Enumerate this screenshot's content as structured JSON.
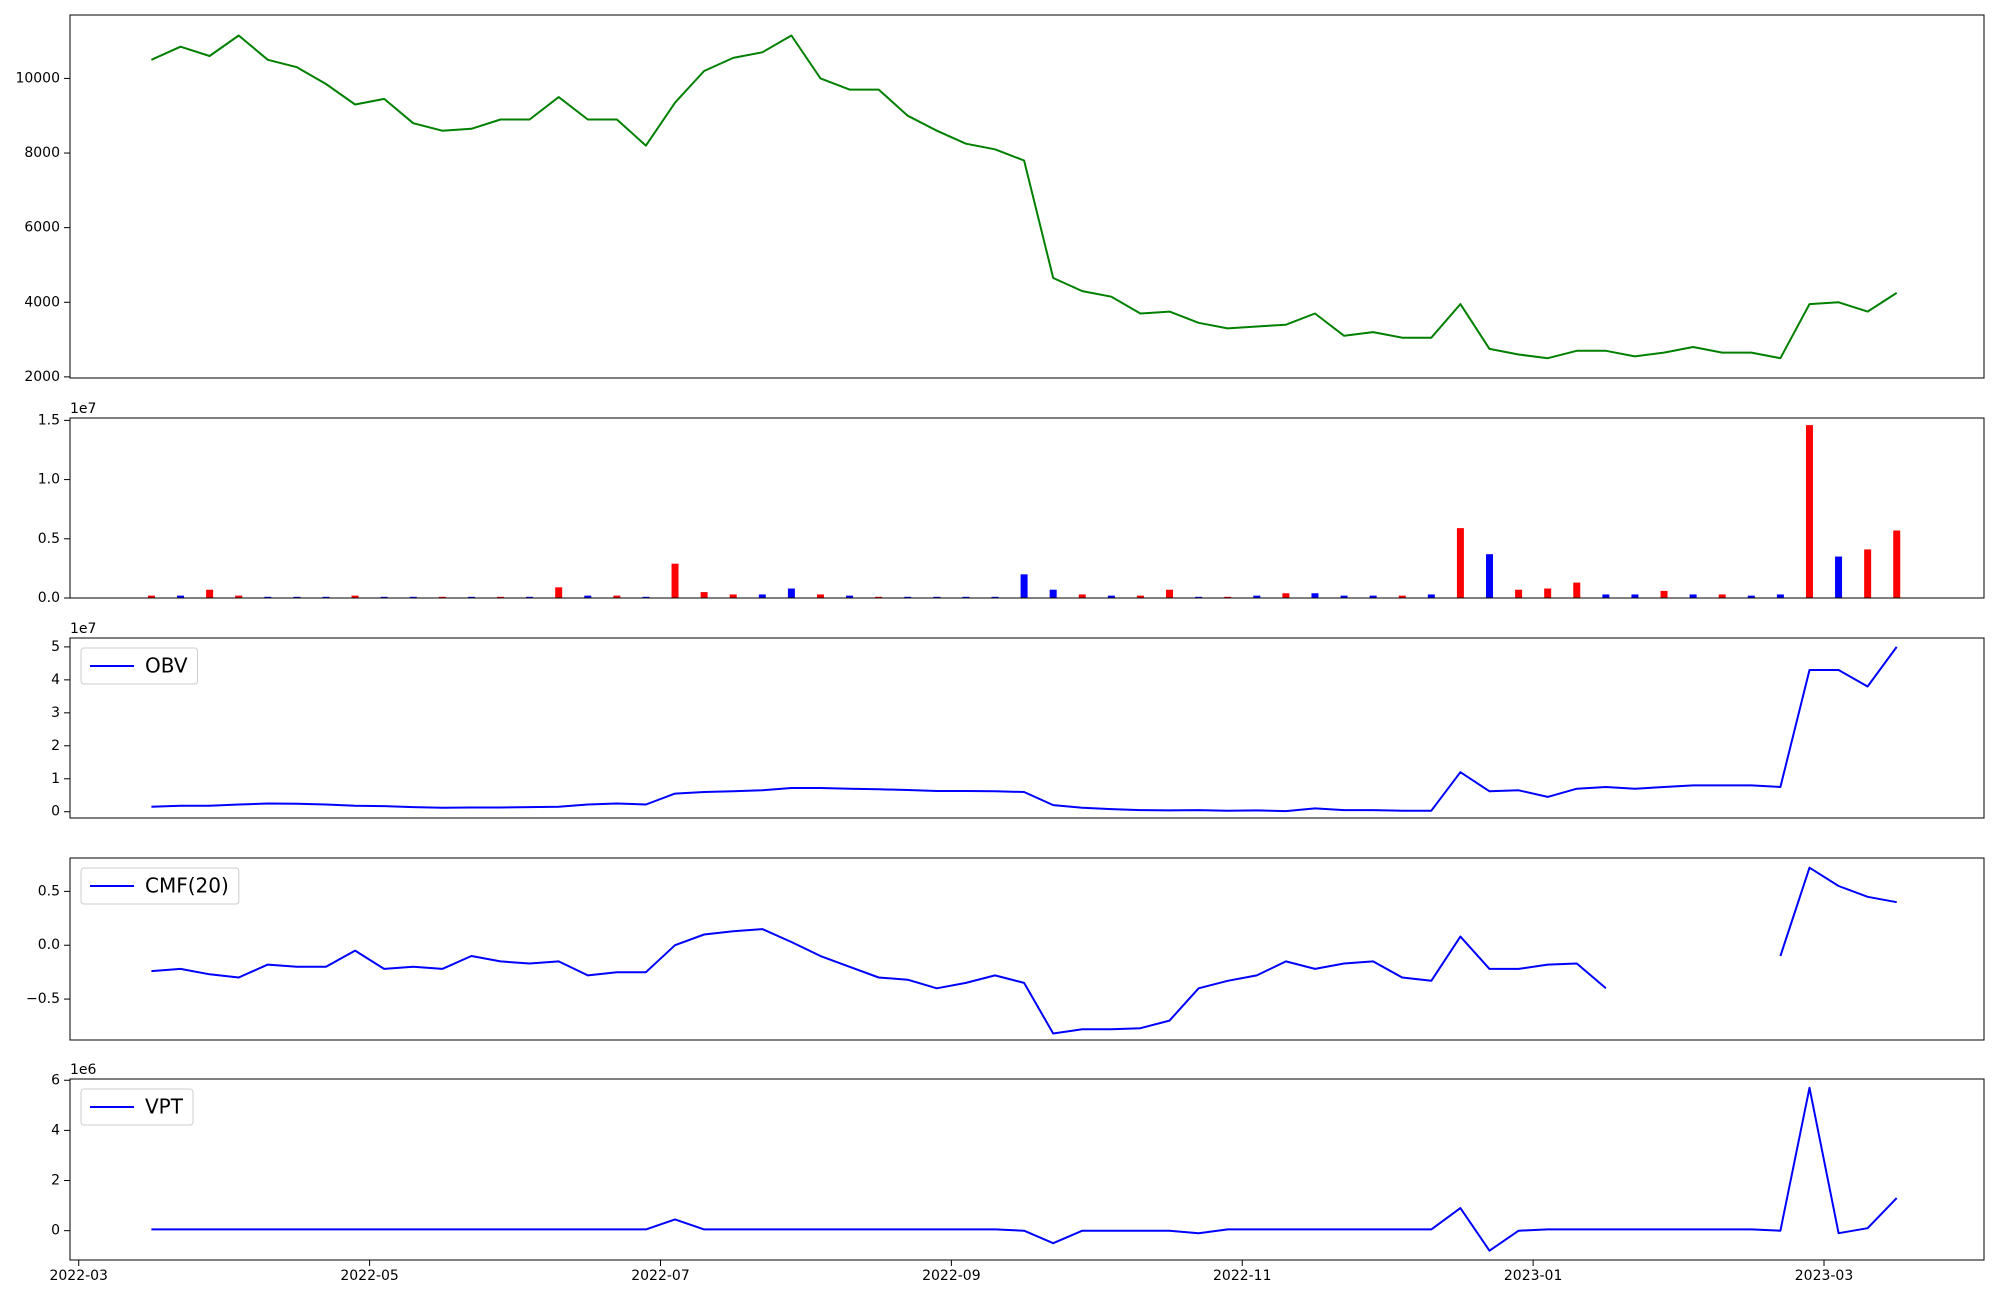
{
  "chart_data": [
    {
      "type": "line",
      "x": [
        0.5,
        0.7,
        0.9,
        1.1,
        1.3,
        1.5,
        1.7,
        1.9,
        2.1,
        2.3,
        2.5,
        2.7,
        2.9,
        3.1,
        3.3,
        3.5,
        3.7,
        3.9,
        4.1,
        4.3,
        4.5,
        4.7,
        4.9,
        5.1,
        5.3,
        5.5,
        5.7,
        5.9,
        6.1,
        6.3,
        6.5,
        6.7,
        6.9,
        7.1,
        7.3,
        7.5,
        7.7,
        7.9,
        8.1,
        8.3,
        8.5,
        8.7,
        8.9,
        9.1,
        9.3,
        9.5,
        9.7,
        9.9,
        10.1,
        10.3,
        10.5,
        10.7,
        10.9,
        11.1,
        11.3,
        11.5,
        11.7,
        11.9,
        12.1,
        12.3,
        12.5
      ],
      "series": [
        {
          "color": "#008000",
          "values": [
            10500,
            10850,
            10600,
            11150,
            10500,
            10300,
            9850,
            9300,
            9450,
            8800,
            8600,
            8650,
            8900,
            8900,
            9500,
            8900,
            8900,
            8200,
            9350,
            10200,
            10550,
            10700,
            11150,
            10000,
            9700,
            9700,
            9000,
            8600,
            8250,
            8100,
            7800,
            4650,
            4300,
            4150,
            3700,
            3750,
            3450,
            3300,
            3350,
            3400,
            3700,
            3100,
            3200,
            3050,
            3050,
            3950,
            2750,
            2600,
            2500,
            2700,
            2700,
            2550,
            2650,
            2800,
            2650,
            2650,
            2500,
            3950,
            4000,
            3750,
            4250
          ]
        }
      ],
      "xlim": [
        -0.06,
        13.1
      ],
      "ylim": [
        1970,
        11700
      ],
      "yticks": [
        2000,
        4000,
        6000,
        8000,
        10000
      ]
    },
    {
      "type": "bar",
      "x": [
        0.5,
        0.7,
        0.9,
        1.1,
        1.3,
        1.5,
        1.7,
        1.9,
        2.1,
        2.3,
        2.5,
        2.7,
        2.9,
        3.1,
        3.3,
        3.5,
        3.7,
        3.9,
        4.1,
        4.3,
        4.5,
        4.7,
        4.9,
        5.1,
        5.3,
        5.5,
        5.7,
        5.9,
        6.1,
        6.3,
        6.5,
        6.7,
        6.9,
        7.1,
        7.3,
        7.5,
        7.7,
        7.9,
        8.1,
        8.3,
        8.5,
        8.7,
        8.9,
        9.1,
        9.3,
        9.5,
        9.7,
        9.9,
        10.1,
        10.3,
        10.5,
        10.7,
        10.9,
        11.1,
        11.3,
        11.5,
        11.7,
        11.9,
        12.1,
        12.3,
        12.5
      ],
      "values": [
        200000,
        200000,
        700000,
        200000,
        100000,
        100000,
        100000,
        200000,
        100000,
        100000,
        100000,
        100000,
        100000,
        100000,
        900000,
        200000,
        200000,
        100000,
        2900000,
        500000,
        300000,
        300000,
        800000,
        300000,
        200000,
        100000,
        100000,
        100000,
        100000,
        100000,
        2000000,
        700000,
        300000,
        200000,
        200000,
        700000,
        100000,
        100000,
        200000,
        400000,
        400000,
        200000,
        200000,
        200000,
        300000,
        5900000,
        3700000,
        700000,
        800000,
        1300000,
        300000,
        300000,
        600000,
        300000,
        300000,
        200000,
        300000,
        14600000,
        3500000,
        4100000,
        5700000
      ],
      "colors": [
        "red",
        "blue",
        "red",
        "red",
        "blue",
        "blue",
        "blue",
        "red",
        "blue",
        "blue",
        "red",
        "blue",
        "red",
        "blue",
        "red",
        "blue",
        "red",
        "blue",
        "red",
        "red",
        "red",
        "blue",
        "blue",
        "red",
        "blue",
        "red",
        "blue",
        "blue",
        "blue",
        "blue",
        "blue",
        "blue",
        "red",
        "blue",
        "red",
        "red",
        "blue",
        "red",
        "blue",
        "red",
        "blue",
        "blue",
        "blue",
        "red",
        "blue",
        "red",
        "blue",
        "red",
        "red",
        "red",
        "blue",
        "blue",
        "red",
        "blue",
        "red",
        "blue",
        "blue",
        "red",
        "blue",
        "red",
        "red"
      ],
      "offset_text": "1e7",
      "xlim": [
        -0.06,
        13.1
      ],
      "ylim": [
        0,
        15200000
      ],
      "yticks": [
        {
          "value": 0,
          "label": "0.0"
        },
        {
          "value": 5000000,
          "label": "0.5"
        },
        {
          "value": 10000000,
          "label": "1.0"
        },
        {
          "value": 15000000,
          "label": "1.5"
        }
      ]
    },
    {
      "type": "line",
      "x": [
        0.5,
        0.7,
        0.9,
        1.1,
        1.3,
        1.5,
        1.7,
        1.9,
        2.1,
        2.3,
        2.5,
        2.7,
        2.9,
        3.1,
        3.3,
        3.5,
        3.7,
        3.9,
        4.1,
        4.3,
        4.5,
        4.7,
        4.9,
        5.1,
        5.3,
        5.5,
        5.7,
        5.9,
        6.1,
        6.3,
        6.5,
        6.7,
        6.9,
        7.1,
        7.3,
        7.5,
        7.7,
        7.9,
        8.1,
        8.3,
        8.5,
        8.7,
        8.9,
        9.1,
        9.3,
        9.5,
        9.7,
        9.9,
        10.1,
        10.3,
        10.5,
        10.7,
        10.9,
        11.1,
        11.3,
        11.5,
        11.7,
        11.9,
        12.1,
        12.3,
        12.5
      ],
      "series": [
        {
          "name": "OBV",
          "color": "#0000ff",
          "values": [
            1500000,
            1800000,
            1800000,
            2200000,
            2500000,
            2400000,
            2200000,
            1800000,
            1700000,
            1400000,
            1200000,
            1300000,
            1300000,
            1400000,
            1500000,
            2200000,
            2500000,
            2200000,
            5500000,
            6000000,
            6200000,
            6500000,
            7200000,
            7200000,
            7000000,
            6800000,
            6600000,
            6300000,
            6300000,
            6200000,
            6000000,
            2000000,
            1200000,
            800000,
            500000,
            400000,
            500000,
            300000,
            400000,
            200000,
            1000000,
            500000,
            500000,
            300000,
            300000,
            12000000,
            6200000,
            6500000,
            4500000,
            7000000,
            7500000,
            7000000,
            7500000,
            8000000,
            8000000,
            8000000,
            7500000,
            43000000,
            43000000,
            38000000,
            50000000
          ]
        }
      ],
      "offset_text": "1e7",
      "legend": "upper left",
      "xlim": [
        -0.06,
        13.1
      ],
      "ylim": [
        -1900000,
        52700000
      ],
      "yticks": [
        {
          "value": 0,
          "label": "0"
        },
        {
          "value": 10000000,
          "label": "1"
        },
        {
          "value": 20000000,
          "label": "2"
        },
        {
          "value": 30000000,
          "label": "3"
        },
        {
          "value": 40000000,
          "label": "4"
        },
        {
          "value": 50000000,
          "label": "5"
        }
      ]
    },
    {
      "type": "line",
      "x": [
        0.5,
        0.7,
        0.9,
        1.1,
        1.3,
        1.5,
        1.7,
        1.9,
        2.1,
        2.3,
        2.5,
        2.7,
        2.9,
        3.1,
        3.3,
        3.5,
        3.7,
        3.9,
        4.1,
        4.3,
        4.5,
        4.7,
        4.9,
        5.1,
        5.3,
        5.5,
        5.7,
        5.9,
        6.1,
        6.3,
        6.5,
        6.7,
        6.9,
        7.1,
        7.3,
        7.5,
        7.7,
        7.9,
        8.1,
        8.3,
        8.5,
        8.7,
        8.9,
        9.1,
        9.3,
        9.5,
        9.7,
        9.9,
        10.1,
        10.3,
        10.5,
        10.7,
        10.9,
        11.1,
        11.3,
        11.5,
        11.7,
        11.9,
        12.1,
        12.3,
        12.5
      ],
      "series": [
        {
          "name": "CMF(20)",
          "color": "#0000ff",
          "values": [
            -0.24,
            -0.22,
            -0.27,
            -0.3,
            -0.18,
            -0.2,
            -0.2,
            -0.05,
            -0.22,
            -0.2,
            -0.22,
            -0.1,
            -0.15,
            -0.17,
            -0.15,
            -0.28,
            -0.25,
            -0.25,
            0.0,
            0.1,
            0.13,
            0.15,
            0.03,
            -0.1,
            -0.2,
            -0.3,
            -0.32,
            -0.4,
            -0.35,
            -0.28,
            -0.35,
            -0.82,
            -0.78,
            -0.78,
            -0.77,
            -0.7,
            -0.4,
            -0.33,
            -0.28,
            -0.15,
            -0.22,
            -0.17,
            -0.15,
            -0.3,
            -0.33,
            0.08,
            -0.22,
            -0.22,
            -0.18,
            -0.17,
            -0.4,
            null,
            null,
            null,
            null,
            null,
            -0.1,
            0.72,
            0.55,
            0.45,
            0.4
          ]
        }
      ],
      "legend": "upper left",
      "xlim": [
        -0.06,
        13.1
      ],
      "ylim": [
        -0.88,
        0.81
      ],
      "yticks": [
        {
          "value": -0.5,
          "label": "−0.5"
        },
        {
          "value": 0,
          "label": "0.0"
        },
        {
          "value": 0.5,
          "label": "0.5"
        }
      ]
    },
    {
      "type": "line",
      "x": [
        0.5,
        0.7,
        0.9,
        1.1,
        1.3,
        1.5,
        1.7,
        1.9,
        2.1,
        2.3,
        2.5,
        2.7,
        2.9,
        3.1,
        3.3,
        3.5,
        3.7,
        3.9,
        4.1,
        4.3,
        4.5,
        4.7,
        4.9,
        5.1,
        5.3,
        5.5,
        5.7,
        5.9,
        6.1,
        6.3,
        6.5,
        6.7,
        6.9,
        7.1,
        7.3,
        7.5,
        7.7,
        7.9,
        8.1,
        8.3,
        8.5,
        8.7,
        8.9,
        9.1,
        9.3,
        9.5,
        9.7,
        9.9,
        10.1,
        10.3,
        10.5,
        10.7,
        10.9,
        11.1,
        11.3,
        11.5,
        11.7,
        11.9,
        12.1,
        12.3,
        12.5
      ],
      "series": [
        {
          "name": "VPT",
          "color": "#0000ff",
          "values": [
            50000,
            50000,
            50000,
            50000,
            50000,
            50000,
            50000,
            50000,
            50000,
            50000,
            50000,
            50000,
            50000,
            50000,
            50000,
            50000,
            50000,
            50000,
            450000,
            50000,
            50000,
            50000,
            50000,
            50000,
            50000,
            50000,
            50000,
            50000,
            50000,
            50000,
            0,
            -500000,
            0,
            0,
            0,
            0,
            -100000,
            50000,
            50000,
            50000,
            50000,
            50000,
            50000,
            50000,
            50000,
            900000,
            -800000,
            0,
            50000,
            50000,
            50000,
            50000,
            50000,
            50000,
            50000,
            50000,
            0,
            5700000,
            -100000,
            100000,
            1300000
          ]
        }
      ],
      "offset_text": "1e6",
      "legend": "upper left",
      "xlim": [
        -0.06,
        13.1
      ],
      "ylim": [
        -1170000,
        6050000
      ],
      "yticks": [
        {
          "value": 0,
          "label": "0"
        },
        {
          "value": 2000000,
          "label": "2"
        },
        {
          "value": 4000000,
          "label": "4"
        },
        {
          "value": 6000000,
          "label": "6"
        }
      ],
      "xticks": [
        {
          "value": 0,
          "label": "2022-03"
        },
        {
          "value": 2,
          "label": "2022-05"
        },
        {
          "value": 4,
          "label": "2022-07"
        },
        {
          "value": 6,
          "label": "2022-09"
        },
        {
          "value": 8,
          "label": "2022-11"
        },
        {
          "value": 10,
          "label": "2023-01"
        },
        {
          "value": 12,
          "label": "2023-03"
        }
      ]
    }
  ]
}
